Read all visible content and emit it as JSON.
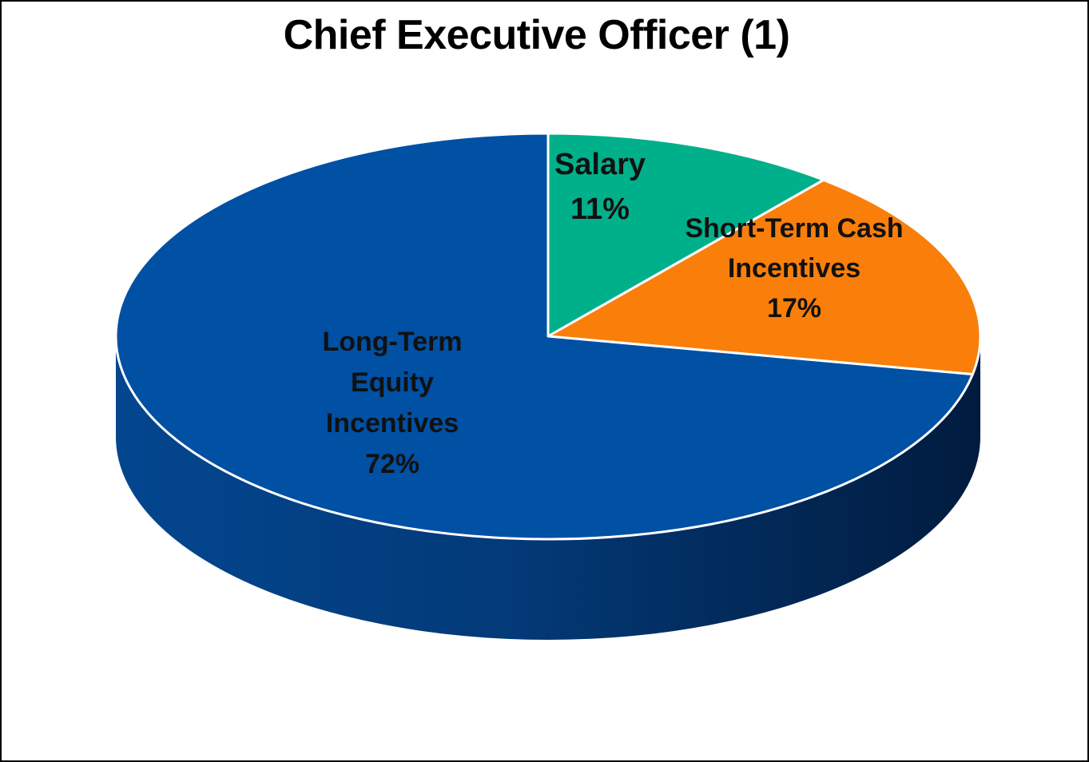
{
  "chart_data": {
    "type": "pie",
    "title": "Chief Executive Officer (1)",
    "style": "3d",
    "slices": [
      {
        "label": "Salary",
        "value": 11,
        "value_label": "11%",
        "color": "#00B08A"
      },
      {
        "label": "Short-Term Cash Incentives",
        "label_lines": [
          "Short-Term Cash",
          "Incentives"
        ],
        "value": 17,
        "value_label": "17%",
        "color": "#F97F0A"
      },
      {
        "label": "Long-Term Equity Incentives",
        "label_lines": [
          "Long-Term",
          "Equity",
          "Incentives"
        ],
        "value": 72,
        "value_label": "72%",
        "color": "#0050A4"
      }
    ],
    "legend": "none"
  }
}
